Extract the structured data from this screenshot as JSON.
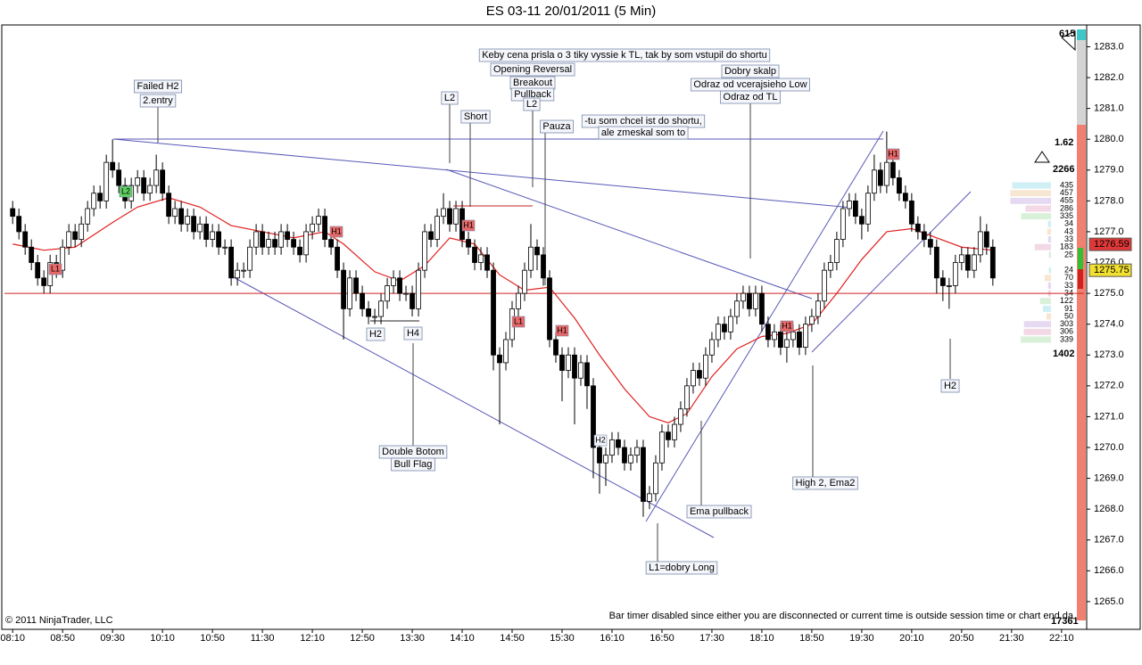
{
  "chart_data": {
    "type": "candlestick",
    "title": "ES 03-11  20/01/2011 (5 Min)",
    "open": [
      1277.75,
      1277.5,
      1277,
      1276.5,
      1276,
      1275.5,
      1275.25,
      1276,
      1275.75,
      1276.5,
      1277,
      1276.75,
      1277.25,
      1277.75,
      1278.25,
      1278,
      1279.25,
      1279,
      1278.5,
      1278,
      1278.5,
      1278.75,
      1278.25,
      1278.5,
      1279,
      1278.25,
      1277.5,
      1277.75,
      1277.25,
      1277.5,
      1277,
      1277.25,
      1276.75,
      1277,
      1276.5,
      1276.5,
      1275.5,
      1275.75,
      1275.75,
      1276.5,
      1277,
      1276.5,
      1276.75,
      1276.5,
      1277,
      1276.75,
      1276.5,
      1276.25,
      1277,
      1277.25,
      1277.5,
      1276.75,
      1276.5,
      1275.75,
      1274.5,
      1275.5,
      1275,
      1274.5,
      1274.25,
      1274.25,
      1274.75,
      1275.25,
      1275.5,
      1275,
      1275,
      1274.5,
      1275.75,
      1277,
      1276.75,
      1277.5,
      1277.75,
      1277.25,
      1277.75,
      1276.75,
      1276.5,
      1276,
      1276.25,
      1275.75,
      1273,
      1272.75,
      1273.5,
      1274.5,
      1275,
      1275.75,
      1276.5,
      1276.25,
      1275.5,
      1273.5,
      1273,
      1272.5,
      1273,
      1272.25,
      1272.75,
      1272,
      1270,
      1269.5,
      1269.75,
      1270.25,
      1270,
      1269.5,
      1269.75,
      1270,
      1268.25,
      1268.5,
      1269.5,
      1270.5,
      1270.25,
      1270.75,
      1271.25,
      1272,
      1272.5,
      1272.25,
      1273,
      1273.5,
      1274,
      1273.75,
      1274.25,
      1274.75,
      1275,
      1274.5,
      1275,
      1274,
      1273.5,
      1273.75,
      1273.25,
      1273.5,
      1273.75,
      1273.25,
      1274,
      1274.25,
      1274.75,
      1275.75,
      1276,
      1276.75,
      1277.75,
      1278,
      1277.5,
      1277.25,
      1278.25,
      1279,
      1278.5,
      1279.25,
      1278.75,
      1278.25,
      1278,
      1277.25,
      1277,
      1276.75,
      1276.5,
      1275.5,
      1275.25,
      1275.25,
      1276,
      1276.25,
      1275.75,
      1276.25,
      1277,
      1276.5
    ],
    "high": [
      1278,
      1277.75,
      1277.25,
      1276.75,
      1276.25,
      1275.75,
      1276.25,
      1276.25,
      1276.75,
      1277.25,
      1277.25,
      1277.5,
      1278,
      1278.5,
      1278.5,
      1279.5,
      1280,
      1279.25,
      1278.75,
      1278.75,
      1279,
      1279,
      1278.75,
      1279.5,
      1279.25,
      1278.5,
      1278,
      1278,
      1277.75,
      1277.75,
      1277.5,
      1277.5,
      1277.25,
      1277.25,
      1276.75,
      1276.75,
      1276,
      1276,
      1276.75,
      1277.25,
      1277.25,
      1277,
      1277,
      1277.25,
      1277.25,
      1277,
      1276.75,
      1277.25,
      1277.5,
      1277.75,
      1277.75,
      1277,
      1276.75,
      1276,
      1275.75,
      1275.75,
      1275.25,
      1274.75,
      1274.5,
      1275,
      1275.5,
      1275.75,
      1275.75,
      1275.25,
      1275.25,
      1276,
      1277.25,
      1277.25,
      1277.75,
      1278.25,
      1278,
      1278,
      1278,
      1277,
      1276.75,
      1276.5,
      1276.5,
      1276,
      1273.25,
      1273.75,
      1274.75,
      1275.25,
      1276,
      1277.25,
      1276.75,
      1276.5,
      1275.75,
      1273.75,
      1273.25,
      1273.25,
      1273.25,
      1273,
      1273,
      1272.25,
      1270.25,
      1270,
      1270.5,
      1270.5,
      1270.25,
      1270,
      1270.25,
      1270.25,
      1268.75,
      1269.75,
      1270.75,
      1270.75,
      1271,
      1271.5,
      1272.25,
      1272.75,
      1272.75,
      1273.25,
      1273.75,
      1274.25,
      1274.25,
      1274.5,
      1275,
      1275.25,
      1275.25,
      1275.25,
      1275.25,
      1274.25,
      1274,
      1274,
      1273.75,
      1274,
      1274,
      1274.25,
      1274.5,
      1275,
      1276,
      1276.25,
      1277,
      1278,
      1278.25,
      1278.25,
      1277.75,
      1278.5,
      1279.5,
      1279.25,
      1280.25,
      1279.5,
      1279,
      1278.5,
      1278.25,
      1277.5,
      1277.25,
      1277,
      1276.75,
      1275.75,
      1275.5,
      1276.25,
      1276.5,
      1276.5,
      1276.5,
      1277.5,
      1277.25,
      1276.75
    ],
    "low": [
      1277.25,
      1276.75,
      1276.25,
      1275.75,
      1275.25,
      1275,
      1275,
      1275.5,
      1275.5,
      1276.25,
      1276.5,
      1276.5,
      1277,
      1277.5,
      1277.75,
      1277.75,
      1278.75,
      1278.25,
      1277.75,
      1277.75,
      1278.25,
      1278,
      1278,
      1278.25,
      1278,
      1277.25,
      1277.25,
      1277,
      1277,
      1276.75,
      1276.75,
      1276.5,
      1276.5,
      1276.25,
      1276.25,
      1275.25,
      1275.25,
      1275.5,
      1275.5,
      1276.25,
      1276.25,
      1276.25,
      1276.25,
      1276.25,
      1276.5,
      1276.25,
      1276,
      1276,
      1276.75,
      1277,
      1276.5,
      1276.25,
      1275.5,
      1273.5,
      1274.25,
      1274.75,
      1274.25,
      1274,
      1274,
      1274,
      1274.5,
      1275,
      1274.75,
      1274.75,
      1274.25,
      1274.25,
      1275.5,
      1276.5,
      1276.5,
      1277.25,
      1277,
      1277,
      1276.5,
      1276.25,
      1275.75,
      1275.75,
      1275.5,
      1272.5,
      1270.75,
      1272.5,
      1273.25,
      1274.25,
      1274.75,
      1275.5,
      1275.75,
      1275.25,
      1273.25,
      1272.75,
      1271.5,
      1272.25,
      1270.75,
      1272,
      1271.25,
      1269,
      1268.5,
      1268.75,
      1269.5,
      1269.75,
      1269.25,
      1269.25,
      1269.5,
      1267.75,
      1268,
      1268.25,
      1269.25,
      1270,
      1270,
      1270.5,
      1271,
      1271.75,
      1272,
      1272,
      1272.75,
      1273.25,
      1273.5,
      1273.5,
      1274,
      1274.5,
      1274.25,
      1274.25,
      1273.75,
      1273.25,
      1273.25,
      1273,
      1272.75,
      1273.25,
      1273,
      1273,
      1273.75,
      1274,
      1274.5,
      1275.5,
      1275.75,
      1276.5,
      1277.5,
      1277.25,
      1276.75,
      1277,
      1278,
      1278.25,
      1278.25,
      1278.5,
      1278,
      1277.75,
      1277,
      1276.75,
      1276.5,
      1276.25,
      1275,
      1274.75,
      1274.5,
      1275,
      1275.75,
      1275.5,
      1275.5,
      1276,
      1276.25,
      1275.25
    ],
    "close": [
      1277.5,
      1277,
      1276.5,
      1276,
      1275.5,
      1275.25,
      1276,
      1275.75,
      1276.5,
      1277,
      1276.75,
      1277.25,
      1277.75,
      1278.25,
      1278,
      1279.25,
      1279,
      1278.5,
      1278,
      1278.5,
      1278.75,
      1278.25,
      1278.5,
      1279,
      1278.25,
      1277.5,
      1277.75,
      1277.25,
      1277.5,
      1277,
      1277.25,
      1276.75,
      1277,
      1276.5,
      1276.5,
      1275.5,
      1275.75,
      1275.75,
      1276.5,
      1277,
      1276.5,
      1276.75,
      1276.5,
      1277,
      1276.75,
      1276.5,
      1276.25,
      1277,
      1277.25,
      1277.5,
      1276.75,
      1276.5,
      1275.75,
      1274.5,
      1275.5,
      1275,
      1274.5,
      1274.25,
      1274.25,
      1274.75,
      1275.25,
      1275.5,
      1275,
      1275,
      1274.5,
      1275.75,
      1277,
      1276.75,
      1277.5,
      1277.75,
      1277.25,
      1277.75,
      1276.75,
      1276.5,
      1276,
      1276.25,
      1275.75,
      1273,
      1272.75,
      1273.5,
      1274.5,
      1275,
      1275.75,
      1276.5,
      1276.25,
      1275.5,
      1273.5,
      1273,
      1272.5,
      1273,
      1272.25,
      1272.75,
      1272,
      1270,
      1269.5,
      1269.75,
      1270.25,
      1270,
      1269.5,
      1269.75,
      1270,
      1268.25,
      1268.5,
      1269.5,
      1270.5,
      1270.25,
      1270.75,
      1271.25,
      1272,
      1272.5,
      1272.25,
      1273,
      1273.5,
      1274,
      1273.75,
      1274.25,
      1274.75,
      1275,
      1274.5,
      1275,
      1274,
      1273.5,
      1273.75,
      1273.25,
      1273.5,
      1273.75,
      1273.25,
      1274,
      1274.25,
      1274.75,
      1275.75,
      1276,
      1276.75,
      1277.75,
      1278,
      1277.5,
      1277.25,
      1278.25,
      1279,
      1278.5,
      1279.25,
      1278.75,
      1278.25,
      1278,
      1277.25,
      1277,
      1276.75,
      1276.5,
      1275.5,
      1275.25,
      1275.25,
      1276,
      1276.25,
      1275.75,
      1276.25,
      1277,
      1276.5,
      1275.5
    ],
    "ema": {
      "color": "#e02020",
      "x": [
        0,
        5,
        10,
        16,
        20,
        25,
        30,
        35,
        40,
        45,
        50,
        53,
        58,
        62,
        66,
        70,
        74,
        78,
        82,
        86,
        90,
        94,
        98,
        102,
        105,
        108,
        112,
        116,
        120,
        124,
        128,
        132,
        136,
        140,
        144,
        148,
        152,
        157
      ],
      "values": [
        1276.6,
        1276.4,
        1276.5,
        1277.3,
        1277.8,
        1278.1,
        1277.8,
        1277.2,
        1277,
        1276.8,
        1277,
        1276.6,
        1275.7,
        1275.4,
        1275.9,
        1276.8,
        1276.6,
        1275.6,
        1275.1,
        1275.2,
        1274.2,
        1273,
        1271.9,
        1271,
        1270.8,
        1271.1,
        1272.3,
        1273.2,
        1273.6,
        1273.7,
        1274,
        1275,
        1276.1,
        1277,
        1277.1,
        1276.8,
        1276.5,
        1276.4
      ]
    },
    "hline": {
      "value": 1275,
      "color": "#d02020"
    },
    "xlim": [
      -1.6,
      171.6
    ],
    "ylim": [
      1264.1,
      1283.65
    ],
    "xticks": [
      {
        "value": 0,
        "label": "08:10"
      },
      {
        "value": 8,
        "label": "08:50"
      },
      {
        "value": 16,
        "label": "09:30"
      },
      {
        "value": 24,
        "label": "10:10"
      },
      {
        "value": 32,
        "label": "10:50"
      },
      {
        "value": 40,
        "label": "11:30"
      },
      {
        "value": 48,
        "label": "12:10"
      },
      {
        "value": 56,
        "label": "12:50"
      },
      {
        "value": 64,
        "label": "13:30"
      },
      {
        "value": 72,
        "label": "14:10"
      },
      {
        "value": 80,
        "label": "14:50"
      },
      {
        "value": 88,
        "label": "15:30"
      },
      {
        "value": 96,
        "label": "16:10"
      },
      {
        "value": 104,
        "label": "16:50"
      },
      {
        "value": 112,
        "label": "17:30"
      },
      {
        "value": 120,
        "label": "18:10"
      },
      {
        "value": 128,
        "label": "18:50"
      },
      {
        "value": 136,
        "label": "19:30"
      },
      {
        "value": 144,
        "label": "20:10"
      },
      {
        "value": 152,
        "label": "20:50"
      },
      {
        "value": 160,
        "label": "21:30"
      },
      {
        "value": 168,
        "label": "22:10"
      }
    ],
    "yticks": [
      {
        "value": 1265,
        "label": "1265.0"
      },
      {
        "value": 1266,
        "label": "1266.0"
      },
      {
        "value": 1267,
        "label": "1267.0"
      },
      {
        "value": 1268,
        "label": "1268.0"
      },
      {
        "value": 1269,
        "label": "1269.0"
      },
      {
        "value": 1270,
        "label": "1270.0"
      },
      {
        "value": 1271,
        "label": "1271.0"
      },
      {
        "value": 1272,
        "label": "1272.0"
      },
      {
        "value": 1273,
        "label": "1273.0"
      },
      {
        "value": 1274,
        "label": "1274.0"
      },
      {
        "value": 1275,
        "label": "1275.0"
      },
      {
        "value": 1276,
        "label": "1276.0"
      },
      {
        "value": 1277,
        "label": "1277.0"
      },
      {
        "value": 1278,
        "label": "1278.0"
      },
      {
        "value": 1279,
        "label": "1279.0"
      },
      {
        "value": 1280,
        "label": "1280.0"
      },
      {
        "value": 1281,
        "label": "1281.0"
      },
      {
        "value": 1282,
        "label": "1282.0"
      },
      {
        "value": 1283,
        "label": "1283.0"
      }
    ],
    "price_markers": [
      {
        "value": 1276.59,
        "color": "#e03838"
      },
      {
        "value": 1275.75,
        "color": "#f2e030"
      }
    ],
    "profile": {
      "prices": [
        1278.5,
        1278.25,
        1278,
        1277.75,
        1277.5,
        1277.25,
        1277,
        1276.75,
        1276.5,
        1276.25,
        1275.75,
        1275.5,
        1275.25,
        1275,
        1274.75,
        1274.5,
        1274.25,
        1274,
        1273.75,
        1273.5
      ],
      "values": [
        435,
        457,
        455,
        286,
        335,
        34,
        43,
        33,
        183,
        25,
        24,
        70,
        33,
        34,
        122,
        91,
        50,
        303,
        306,
        339
      ]
    },
    "stats": [
      615,
      1.62,
      2266,
      1402,
      17361
    ],
    "annotations": [
      "Failed H2",
      "2.entry",
      "Keby cena prisla o 3 tiky vyssie k TL, tak by som vstupil do shortu",
      "Opening Reversal",
      "Breakout",
      "Pullback",
      "L2",
      "L2",
      "Short",
      "Pauza",
      "-tu som chcel ist do shortu,",
      "ale zmeskal som to",
      "Dobry skalp",
      "Odraz od vcerajsieho Low",
      "Odraz od TL",
      "H2",
      "H4",
      "Double Botom",
      "Bull Flag",
      "Ema pullback",
      "L1=dobry Long",
      "High 2, Ema2",
      "H2"
    ],
    "tags": [
      "L1",
      "L2",
      "H1",
      "H1",
      "L1",
      "H1",
      "H2",
      "H1",
      "H1"
    ],
    "copyright": "© 2011 NinjaTrader, LLC",
    "status": "Bar timer disabled since either you are disconnected or current time is outside session time or chart end da"
  }
}
